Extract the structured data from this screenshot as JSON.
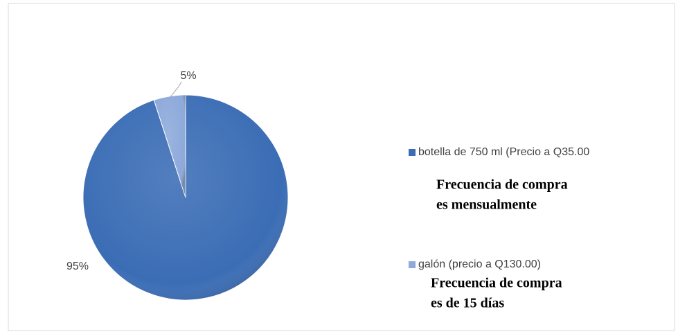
{
  "chart_data": {
    "type": "pie",
    "categories": [
      "botella de 750 ml (Precio a Q35.00",
      "galón (precio a Q130.00)"
    ],
    "values": [
      95,
      5
    ],
    "value_labels": [
      "95%",
      "5%"
    ],
    "colors": [
      "#3b6db5",
      "#8eaadb"
    ],
    "legend": "right",
    "annotations": [
      [
        "Frecuencia de compra",
        "es mensualmente"
      ],
      [
        "Frecuencia de compra",
        "es de 15 días"
      ]
    ]
  }
}
